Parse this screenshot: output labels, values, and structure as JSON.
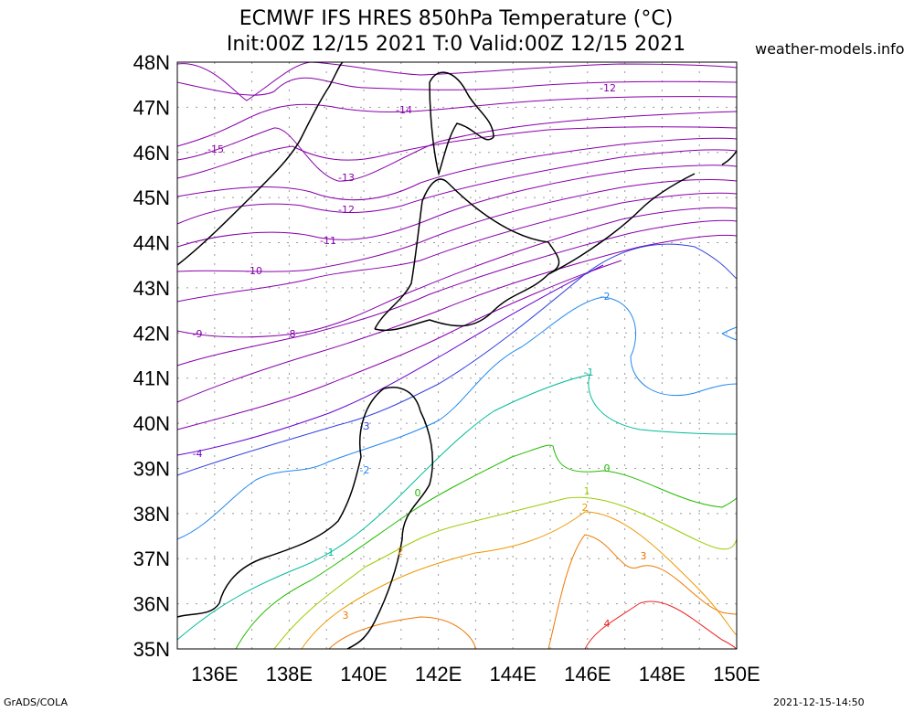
{
  "title": {
    "line1": "ECMWF IFS HRES 850hPa Temperature (°C)",
    "line2": "Init:00Z 12/15 2021 T:0 Valid:00Z 12/15 2021"
  },
  "brand": "weather-models.info",
  "footer": {
    "left": "GrADS/COLA",
    "right": "2021-12-15-14:50"
  },
  "axes": {
    "lat_labels": [
      "48N",
      "47N",
      "46N",
      "45N",
      "44N",
      "43N",
      "42N",
      "41N",
      "40N",
      "39N",
      "38N",
      "37N",
      "36N",
      "35N"
    ],
    "lon_labels": [
      "136E",
      "138E",
      "140E",
      "142E",
      "144E",
      "146E",
      "148E",
      "150E"
    ]
  },
  "chart_data": {
    "type": "contour-map",
    "variable": "850hPa Temperature",
    "units": "°C",
    "lat_range": [
      35,
      48
    ],
    "lon_range": [
      135,
      150
    ],
    "grid": true,
    "contour_labels": [
      {
        "value": -15,
        "color": "#8800aa"
      },
      {
        "value": -14,
        "color": "#8800aa"
      },
      {
        "value": -13,
        "color": "#8800aa"
      },
      {
        "value": -12,
        "color": "#8800aa"
      },
      {
        "value": -11,
        "color": "#8800aa"
      },
      {
        "value": -10,
        "color": "#8800aa"
      },
      {
        "value": -9,
        "color": "#8800aa"
      },
      {
        "value": -8,
        "color": "#8800aa"
      },
      {
        "value": -4,
        "color": "#6600cc"
      },
      {
        "value": -3,
        "color": "#3344dd"
      },
      {
        "value": -2,
        "color": "#2288ee"
      },
      {
        "value": -1,
        "color": "#00bb99"
      },
      {
        "value": 0,
        "color": "#22bb00"
      },
      {
        "value": 1,
        "color": "#99cc00"
      },
      {
        "value": 2,
        "color": "#ee9900"
      },
      {
        "value": 3,
        "color": "#ee7700"
      },
      {
        "value": 4,
        "color": "#ee2222"
      }
    ]
  }
}
